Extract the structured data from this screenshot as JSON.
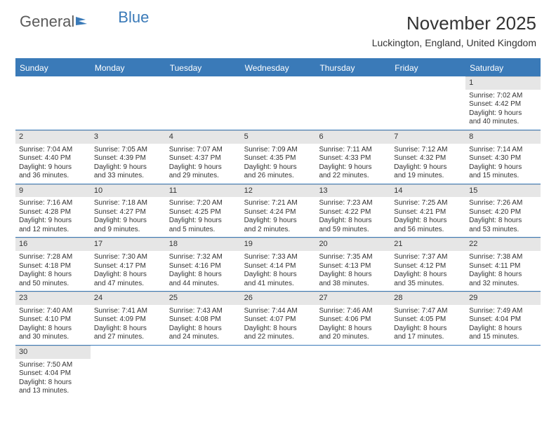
{
  "logo": {
    "part1": "General",
    "part2": "Blue"
  },
  "title": "November 2025",
  "location": "Luckington, England, United Kingdom",
  "colors": {
    "accent": "#3a7ab8",
    "band": "#e6e6e6",
    "text": "#333333",
    "bg": "#ffffff"
  },
  "dayNames": [
    "Sunday",
    "Monday",
    "Tuesday",
    "Wednesday",
    "Thursday",
    "Friday",
    "Saturday"
  ],
  "weeks": [
    [
      null,
      null,
      null,
      null,
      null,
      null,
      {
        "n": "1",
        "sr": "Sunrise: 7:02 AM",
        "ss": "Sunset: 4:42 PM",
        "d1": "Daylight: 9 hours",
        "d2": "and 40 minutes."
      }
    ],
    [
      {
        "n": "2",
        "sr": "Sunrise: 7:04 AM",
        "ss": "Sunset: 4:40 PM",
        "d1": "Daylight: 9 hours",
        "d2": "and 36 minutes."
      },
      {
        "n": "3",
        "sr": "Sunrise: 7:05 AM",
        "ss": "Sunset: 4:39 PM",
        "d1": "Daylight: 9 hours",
        "d2": "and 33 minutes."
      },
      {
        "n": "4",
        "sr": "Sunrise: 7:07 AM",
        "ss": "Sunset: 4:37 PM",
        "d1": "Daylight: 9 hours",
        "d2": "and 29 minutes."
      },
      {
        "n": "5",
        "sr": "Sunrise: 7:09 AM",
        "ss": "Sunset: 4:35 PM",
        "d1": "Daylight: 9 hours",
        "d2": "and 26 minutes."
      },
      {
        "n": "6",
        "sr": "Sunrise: 7:11 AM",
        "ss": "Sunset: 4:33 PM",
        "d1": "Daylight: 9 hours",
        "d2": "and 22 minutes."
      },
      {
        "n": "7",
        "sr": "Sunrise: 7:12 AM",
        "ss": "Sunset: 4:32 PM",
        "d1": "Daylight: 9 hours",
        "d2": "and 19 minutes."
      },
      {
        "n": "8",
        "sr": "Sunrise: 7:14 AM",
        "ss": "Sunset: 4:30 PM",
        "d1": "Daylight: 9 hours",
        "d2": "and 15 minutes."
      }
    ],
    [
      {
        "n": "9",
        "sr": "Sunrise: 7:16 AM",
        "ss": "Sunset: 4:28 PM",
        "d1": "Daylight: 9 hours",
        "d2": "and 12 minutes."
      },
      {
        "n": "10",
        "sr": "Sunrise: 7:18 AM",
        "ss": "Sunset: 4:27 PM",
        "d1": "Daylight: 9 hours",
        "d2": "and 9 minutes."
      },
      {
        "n": "11",
        "sr": "Sunrise: 7:20 AM",
        "ss": "Sunset: 4:25 PM",
        "d1": "Daylight: 9 hours",
        "d2": "and 5 minutes."
      },
      {
        "n": "12",
        "sr": "Sunrise: 7:21 AM",
        "ss": "Sunset: 4:24 PM",
        "d1": "Daylight: 9 hours",
        "d2": "and 2 minutes."
      },
      {
        "n": "13",
        "sr": "Sunrise: 7:23 AM",
        "ss": "Sunset: 4:22 PM",
        "d1": "Daylight: 8 hours",
        "d2": "and 59 minutes."
      },
      {
        "n": "14",
        "sr": "Sunrise: 7:25 AM",
        "ss": "Sunset: 4:21 PM",
        "d1": "Daylight: 8 hours",
        "d2": "and 56 minutes."
      },
      {
        "n": "15",
        "sr": "Sunrise: 7:26 AM",
        "ss": "Sunset: 4:20 PM",
        "d1": "Daylight: 8 hours",
        "d2": "and 53 minutes."
      }
    ],
    [
      {
        "n": "16",
        "sr": "Sunrise: 7:28 AM",
        "ss": "Sunset: 4:18 PM",
        "d1": "Daylight: 8 hours",
        "d2": "and 50 minutes."
      },
      {
        "n": "17",
        "sr": "Sunrise: 7:30 AM",
        "ss": "Sunset: 4:17 PM",
        "d1": "Daylight: 8 hours",
        "d2": "and 47 minutes."
      },
      {
        "n": "18",
        "sr": "Sunrise: 7:32 AM",
        "ss": "Sunset: 4:16 PM",
        "d1": "Daylight: 8 hours",
        "d2": "and 44 minutes."
      },
      {
        "n": "19",
        "sr": "Sunrise: 7:33 AM",
        "ss": "Sunset: 4:14 PM",
        "d1": "Daylight: 8 hours",
        "d2": "and 41 minutes."
      },
      {
        "n": "20",
        "sr": "Sunrise: 7:35 AM",
        "ss": "Sunset: 4:13 PM",
        "d1": "Daylight: 8 hours",
        "d2": "and 38 minutes."
      },
      {
        "n": "21",
        "sr": "Sunrise: 7:37 AM",
        "ss": "Sunset: 4:12 PM",
        "d1": "Daylight: 8 hours",
        "d2": "and 35 minutes."
      },
      {
        "n": "22",
        "sr": "Sunrise: 7:38 AM",
        "ss": "Sunset: 4:11 PM",
        "d1": "Daylight: 8 hours",
        "d2": "and 32 minutes."
      }
    ],
    [
      {
        "n": "23",
        "sr": "Sunrise: 7:40 AM",
        "ss": "Sunset: 4:10 PM",
        "d1": "Daylight: 8 hours",
        "d2": "and 30 minutes."
      },
      {
        "n": "24",
        "sr": "Sunrise: 7:41 AM",
        "ss": "Sunset: 4:09 PM",
        "d1": "Daylight: 8 hours",
        "d2": "and 27 minutes."
      },
      {
        "n": "25",
        "sr": "Sunrise: 7:43 AM",
        "ss": "Sunset: 4:08 PM",
        "d1": "Daylight: 8 hours",
        "d2": "and 24 minutes."
      },
      {
        "n": "26",
        "sr": "Sunrise: 7:44 AM",
        "ss": "Sunset: 4:07 PM",
        "d1": "Daylight: 8 hours",
        "d2": "and 22 minutes."
      },
      {
        "n": "27",
        "sr": "Sunrise: 7:46 AM",
        "ss": "Sunset: 4:06 PM",
        "d1": "Daylight: 8 hours",
        "d2": "and 20 minutes."
      },
      {
        "n": "28",
        "sr": "Sunrise: 7:47 AM",
        "ss": "Sunset: 4:05 PM",
        "d1": "Daylight: 8 hours",
        "d2": "and 17 minutes."
      },
      {
        "n": "29",
        "sr": "Sunrise: 7:49 AM",
        "ss": "Sunset: 4:04 PM",
        "d1": "Daylight: 8 hours",
        "d2": "and 15 minutes."
      }
    ],
    [
      {
        "n": "30",
        "sr": "Sunrise: 7:50 AM",
        "ss": "Sunset: 4:04 PM",
        "d1": "Daylight: 8 hours",
        "d2": "and 13 minutes."
      },
      null,
      null,
      null,
      null,
      null,
      null
    ]
  ]
}
